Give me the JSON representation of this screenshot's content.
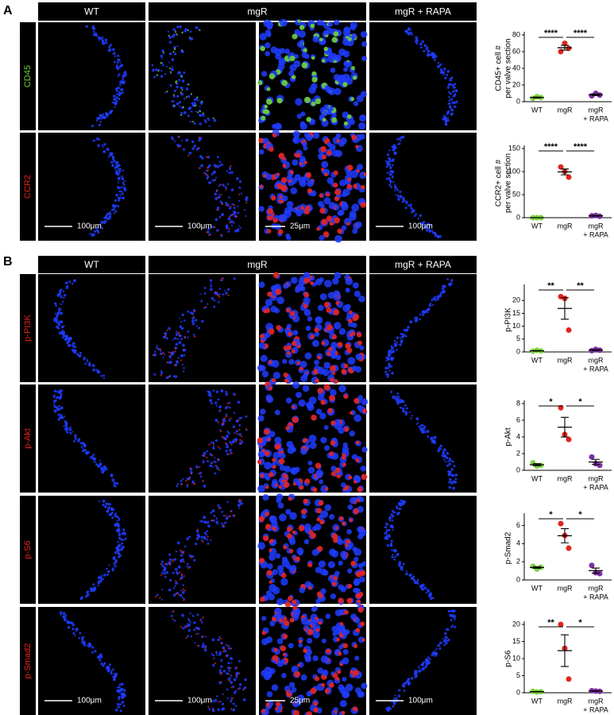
{
  "panel_a": {
    "label": "A",
    "headers": [
      "WT",
      "mgR",
      "mgR + RAPA"
    ],
    "rows": [
      {
        "label": "CD45",
        "color": "#6fd13a"
      },
      {
        "label": "CCR2",
        "color": "#e8231e"
      }
    ],
    "scale_bars": [
      "100μm",
      "100μm",
      "25μm",
      "100μm"
    ]
  },
  "panel_b": {
    "label": "B",
    "headers": [
      "WT",
      "mgR",
      "mgR + RAPA"
    ],
    "rows": [
      {
        "label": "p-PI3K",
        "color": "#e8231e"
      },
      {
        "label": "p-Akt",
        "color": "#e8231e"
      },
      {
        "label": "p-S6",
        "color": "#e8231e"
      },
      {
        "label": "p-Smad2",
        "color": "#e8231e"
      }
    ],
    "scale_bars": [
      "100μm",
      "100μm",
      "25μm",
      "100μm"
    ]
  },
  "chart_data": [
    {
      "type": "dot",
      "ylabel": [
        "CD45+ cell #",
        "per valve section"
      ],
      "categories": [
        "WT",
        "mgR",
        [
          "mgR",
          "+ RAPA"
        ]
      ],
      "colors": [
        "#7ed23f",
        "#e0261d",
        "#7b2fa3"
      ],
      "values": [
        [
          4,
          6,
          5
        ],
        [
          60,
          70,
          64
        ],
        [
          7,
          10,
          8
        ]
      ],
      "mean": [
        5,
        64.7,
        8.3
      ],
      "sem": [
        0.6,
        2.9,
        0.9
      ],
      "significance": [
        "****",
        "****"
      ],
      "ylim": [
        0,
        80
      ],
      "yticks": [
        0,
        20,
        40,
        60,
        80
      ]
    },
    {
      "type": "dot",
      "ylabel": [
        "CCR2+ cell #",
        "per valve section"
      ],
      "categories": [
        "WT",
        "mgR",
        [
          "mgR",
          "+ RAPA"
        ]
      ],
      "colors": [
        "#7ed23f",
        "#e0261d",
        "#7b2fa3"
      ],
      "values": [
        [
          0,
          0,
          0
        ],
        [
          110,
          100,
          88
        ],
        [
          4,
          5,
          3
        ]
      ],
      "mean": [
        0,
        99.3,
        4
      ],
      "sem": [
        0,
        6.4,
        0.6
      ],
      "significance": [
        "****",
        "****"
      ],
      "ylim": [
        0,
        150
      ],
      "yticks": [
        0,
        50,
        100,
        150
      ]
    },
    {
      "type": "dot",
      "ylabel": [
        "p-PI3K"
      ],
      "categories": [
        "WT",
        "mgR",
        [
          "mgR",
          "+ RAPA"
        ]
      ],
      "colors": [
        "#7ed23f",
        "#e0261d",
        "#7b2fa3"
      ],
      "values": [
        [
          0.3,
          0.6,
          0.4
        ],
        [
          21.5,
          20.8,
          8.5
        ],
        [
          0.5,
          1,
          0.7
        ]
      ],
      "mean": [
        0.43,
        16.9,
        0.73
      ],
      "sem": [
        0.09,
        4.2,
        0.15
      ],
      "significance": [
        "**",
        "**"
      ],
      "ylim": [
        0,
        25
      ],
      "yticks": [
        0,
        5,
        10,
        15,
        20
      ]
    },
    {
      "type": "dot",
      "ylabel": [
        "p-Akt"
      ],
      "categories": [
        "WT",
        "mgR",
        [
          "mgR",
          "+ RAPA"
        ]
      ],
      "colors": [
        "#7ed23f",
        "#e0261d",
        "#7b2fa3"
      ],
      "values": [
        [
          0.9,
          0.5,
          0.6
        ],
        [
          7.5,
          4.3,
          3.7
        ],
        [
          1.6,
          0.8,
          0.6
        ]
      ],
      "mean": [
        0.67,
        5.17,
        1.0
      ],
      "sem": [
        0.12,
        1.18,
        0.31
      ],
      "significance": [
        "*",
        "*"
      ],
      "ylim": [
        0,
        8
      ],
      "yticks": [
        0,
        2,
        4,
        6,
        8
      ]
    },
    {
      "type": "dot",
      "ylabel": [
        "p-Smad2"
      ],
      "categories": [
        "WT",
        "mgR",
        [
          "mgR",
          "+ RAPA"
        ]
      ],
      "colors": [
        "#7ed23f",
        "#e0261d",
        "#7b2fa3"
      ],
      "values": [
        [
          1.5,
          1.2,
          1.4
        ],
        [
          6.2,
          4.9,
          3.5
        ],
        [
          1.6,
          0.8,
          0.7
        ]
      ],
      "mean": [
        1.37,
        4.87,
        1.03
      ],
      "sem": [
        0.09,
        0.78,
        0.28
      ],
      "significance": [
        "*",
        "*"
      ],
      "ylim": [
        0,
        7
      ],
      "yticks": [
        0,
        2,
        4,
        6
      ]
    },
    {
      "type": "dot",
      "ylabel": [
        "p-S6"
      ],
      "categories": [
        "WT",
        "mgR",
        [
          "mgR",
          "+ RAPA"
        ]
      ],
      "colors": [
        "#7ed23f",
        "#e0261d",
        "#7b2fa3"
      ],
      "values": [
        [
          0.4,
          0.2,
          0.3
        ],
        [
          20,
          13,
          4
        ],
        [
          0.6,
          0.5,
          0.4
        ]
      ],
      "mean": [
        0.3,
        12.33,
        0.5
      ],
      "sem": [
        0.06,
        4.63,
        0.06
      ],
      "significance": [
        "**",
        "*"
      ],
      "ylim": [
        0,
        20
      ],
      "yticks": [
        0,
        5,
        10,
        15,
        20
      ]
    }
  ]
}
